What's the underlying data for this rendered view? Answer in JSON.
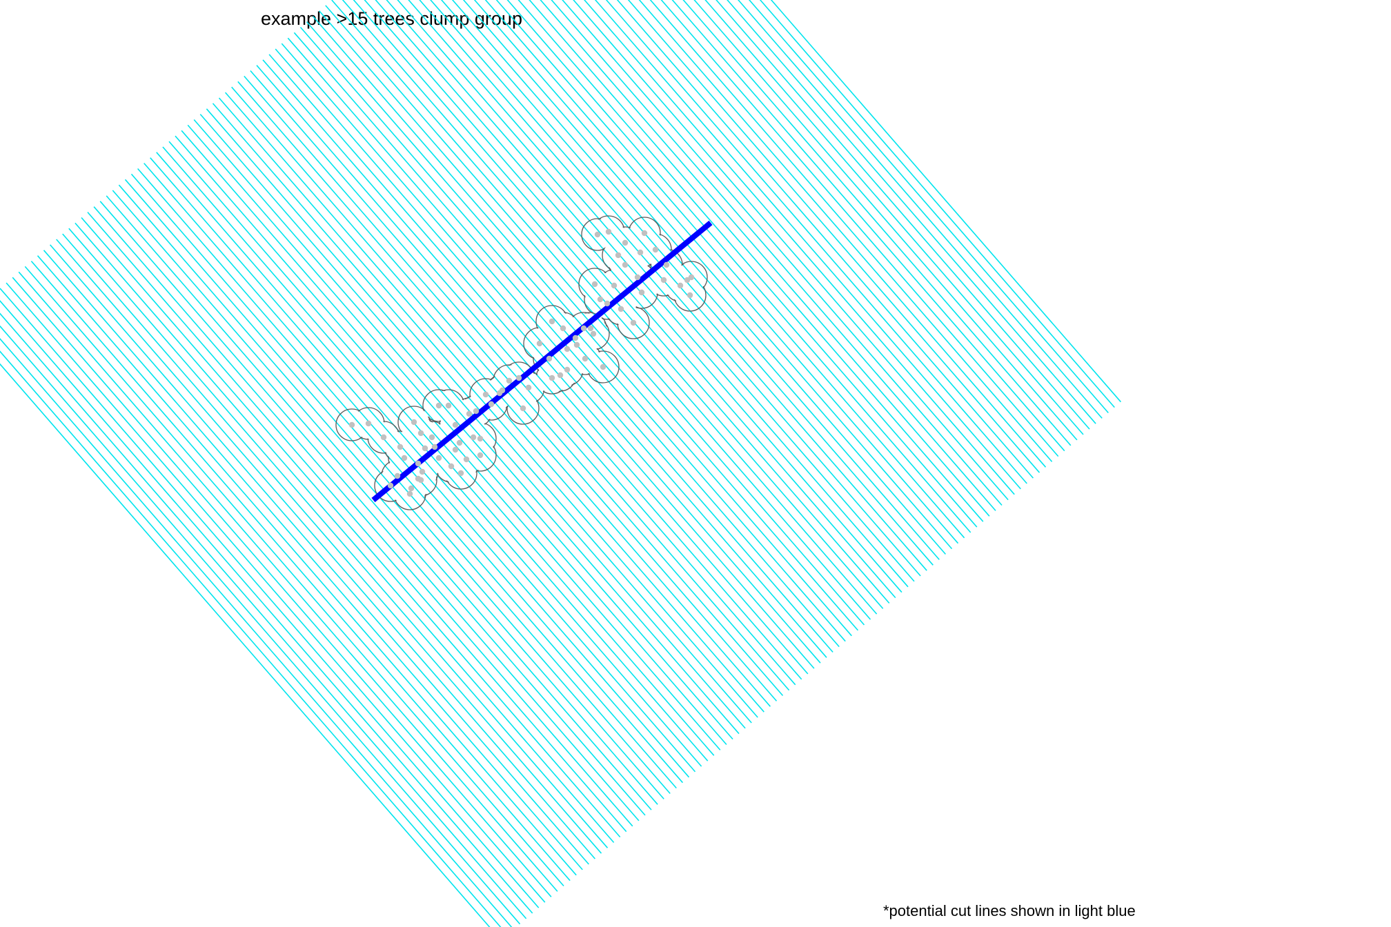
{
  "chart_data": {
    "type": "scatter",
    "title": "example >15 trees clump group",
    "caption": "*potential cut lines shown in light blue",
    "xlabel": "",
    "ylabel": "",
    "grid": false,
    "axes_visible": false,
    "colors": {
      "cut_lines": "#00e5ee",
      "selected_line": "#0000ff",
      "tree_points": "#c0c0c0",
      "clump_outline": "#595959"
    },
    "potential_cut_lines": {
      "count": 100,
      "span": [
        339,
        1232
      ],
      "rotation_deg": -41
    },
    "selected_cut_line": {
      "x": [
        541,
        1030
      ],
      "y": [
        725,
        323
      ]
    },
    "tree_buffer_radius": 23,
    "trees": {
      "x": [
        510,
        534,
        556,
        580,
        600,
        610,
        616,
        626,
        636,
        650,
        660,
        576,
        596,
        606,
        586,
        612,
        636,
        660,
        686,
        696,
        666,
        680,
        606,
        630,
        654,
        676,
        696,
        668,
        566,
        594,
        610,
        690,
        712,
        724,
        738,
        758,
        704,
        728,
        752,
        766,
        782,
        800,
        816,
        834,
        856,
        796,
        822,
        848,
        812,
        822,
        846,
        874,
        800,
        836,
        860,
        880,
        900,
        918,
        862,
        890,
        906,
        930,
        870,
        896,
        928,
        866,
        882,
        906,
        934,
        950,
        966,
        986,
        1002,
        996,
        1000,
        924,
        962
      ],
      "y": [
        616,
        614,
        634,
        648,
        612,
        628,
        650,
        634,
        588,
        588,
        616,
        690,
        708,
        672,
        664,
        684,
        664,
        652,
        634,
        660,
        642,
        600,
        694,
        648,
        676,
        666,
        636,
        686,
        704,
        716,
        696,
        596,
        586,
        570,
        552,
        592,
        572,
        566,
        548,
        562,
        498,
        466,
        476,
        490,
        476,
        520,
        536,
        520,
        544,
        506,
        476,
        532,
        548,
        500,
        484,
        440,
        448,
        468,
        412,
        414,
        384,
        424,
        434,
        370,
        366,
        340,
        336,
        352,
        338,
        362,
        384,
        414,
        402,
        406,
        428,
        402,
        406
      ]
    }
  }
}
